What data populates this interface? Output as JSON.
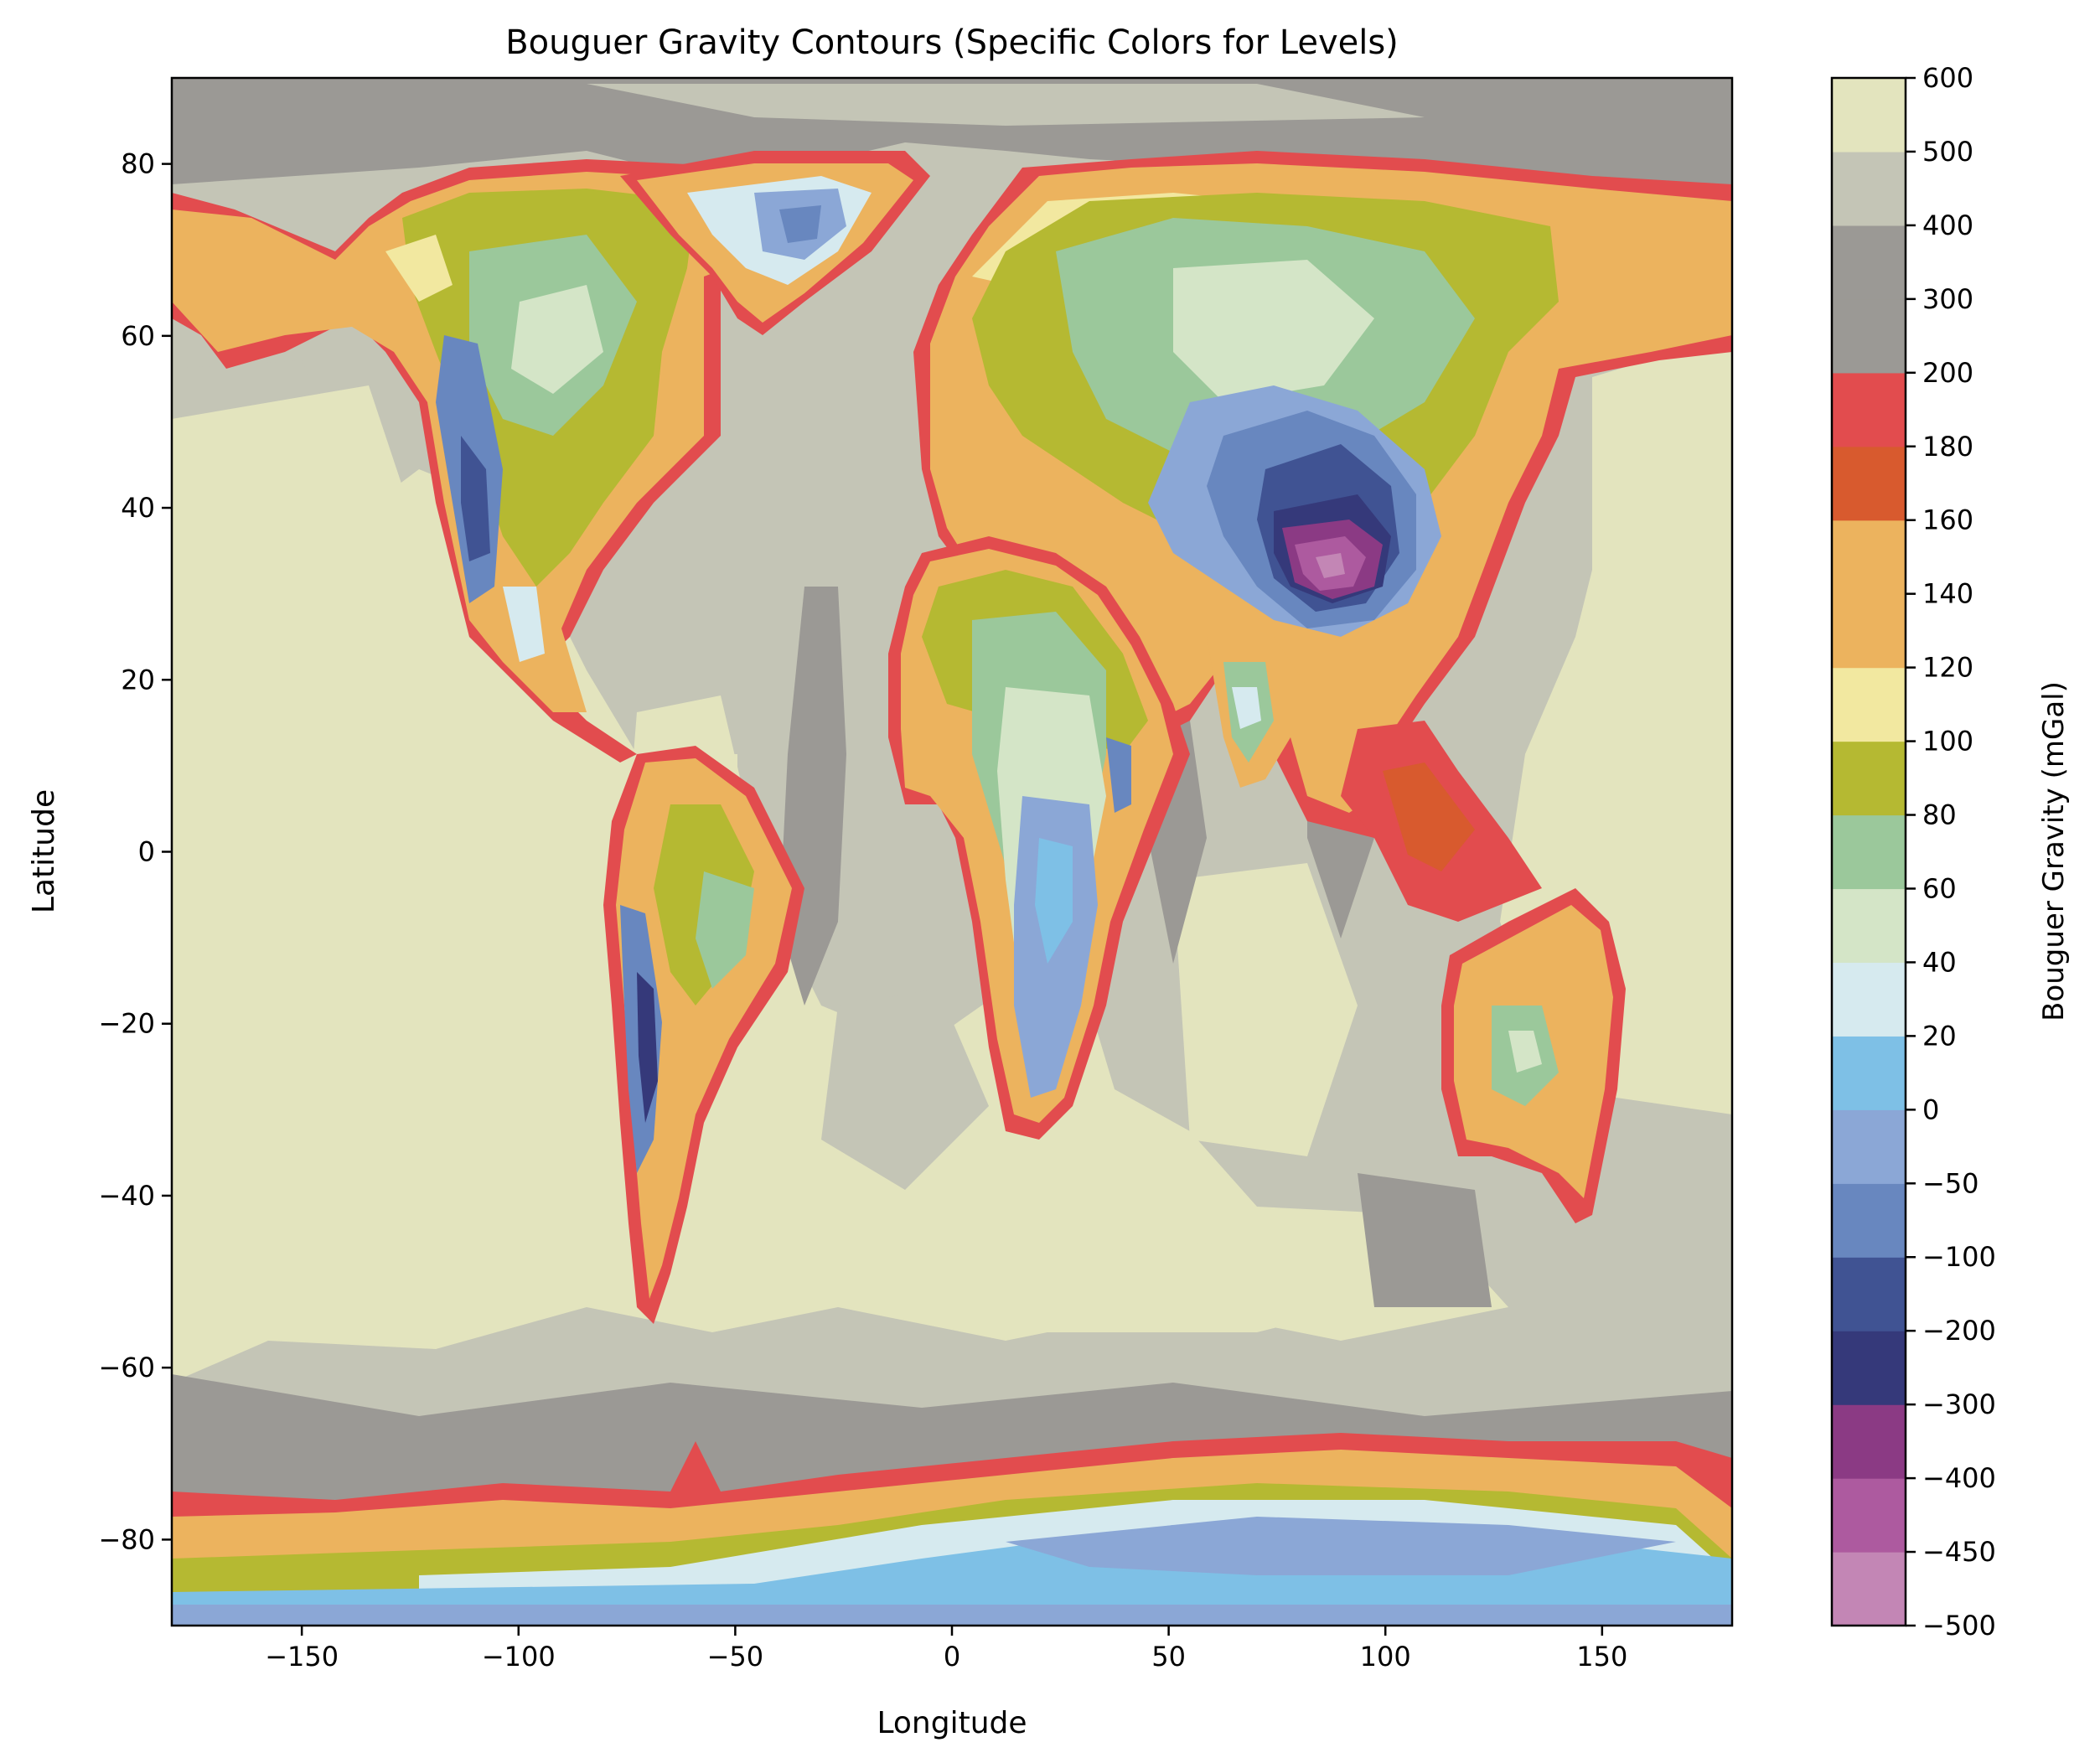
{
  "title": "Bouguer Gravity Contours (Specific Colors for Levels)",
  "chart_data": {
    "type": "filled-contour-map",
    "title": "Bouguer Gravity Contours (Specific Colors for Levels)",
    "xlabel": "Longitude",
    "ylabel": "Latitude",
    "xlim": [
      -180,
      180
    ],
    "ylim": [
      -90,
      90
    ],
    "x_ticks": [
      -150,
      -100,
      -50,
      0,
      50,
      100,
      150
    ],
    "y_ticks": [
      -80,
      -60,
      -40,
      -20,
      0,
      20,
      40,
      60,
      80
    ],
    "colorbar": {
      "label": "Bouguer Gravity (mGal)",
      "levels": [
        -500,
        -450,
        -400,
        -300,
        -200,
        -100,
        -50,
        0,
        20,
        40,
        60,
        80,
        100,
        120,
        140,
        160,
        180,
        200,
        300,
        400,
        500,
        600
      ],
      "colors": [
        "#c386b5",
        "#ad5a9f",
        "#8b3a84",
        "#35397a",
        "#405393",
        "#6887bf",
        "#8ba7d6",
        "#7ec0e6",
        "#d6eaef",
        "#d4e5c7",
        "#9bc89b",
        "#b5b932",
        "#f2e8a0",
        "#ecb35e",
        "#ecb35e",
        "#d85a2e",
        "#e24c4e",
        "#9b9995",
        "#9b9995",
        "#c4c5b6",
        "#e3e4be"
      ]
    },
    "regions": {
      "ocean_deep": "#e3e4be",
      "ocean_mid": "#c4c5b6",
      "shelf": "#9b9995",
      "coast": "#e24c4e",
      "land_low": "#ecb35e",
      "land_mid": "#b5b932",
      "land_high": "#9bc89b",
      "plateau": "#6887bf",
      "tibet_core": "#8b3a84"
    }
  }
}
